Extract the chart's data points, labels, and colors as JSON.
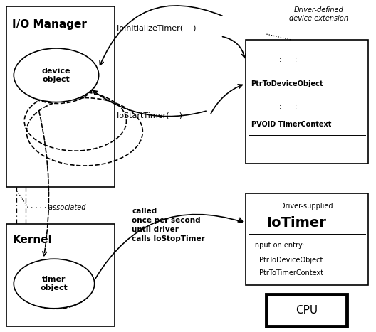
{
  "bg_color": "#ffffff",
  "title_io_manager": "I/O Manager",
  "title_kernel": "Kernel",
  "label_device_object": "device\nobject",
  "label_timer_object": "timer\nobject",
  "label_device_ext_title": "Driver-defined\ndevice extension",
  "label_iotimer_title": "Driver-supplied",
  "label_iotimer_name": "IoTimer",
  "label_cpu": "CPU",
  "label_init": "IoInitializeTimer(    )",
  "label_start": "IoStartTimer(    )",
  "label_called": "called\nonce per second\nuntil driver\ncalls IoStopTimer",
  "label_associated": "associated",
  "label_ptr_device": "PtrToDeviceObject",
  "label_pvoid": "PVOID TimerContext",
  "label_input": "Input on entry:",
  "label_ptr_device2": "PtrToDeviceObject",
  "label_ptr_timer": "PtrToTimerContext",
  "label_colons": ":      :"
}
